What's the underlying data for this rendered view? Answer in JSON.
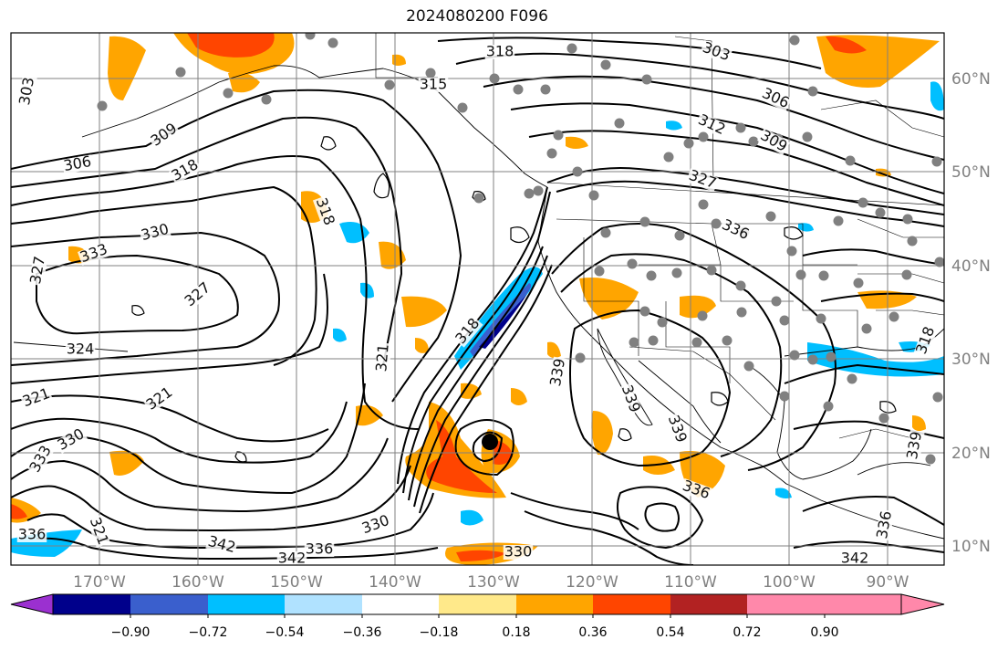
{
  "title": "2024080200 F096",
  "lon_labels": [
    "170°W",
    "160°W",
    "150°W",
    "140°W",
    "130°W",
    "120°W",
    "110°W",
    "100°W",
    "90°W"
  ],
  "lat_labels": [
    "60°N",
    "50°N",
    "40°N",
    "30°N",
    "20°N",
    "10°N"
  ],
  "contour_labels": [
    "303",
    "318",
    "315",
    "303",
    "306",
    "312",
    "309",
    "327",
    "336",
    "306",
    "309",
    "318",
    "330",
    "333",
    "327",
    "327",
    "324",
    "321",
    "321",
    "330",
    "333",
    "318",
    "321",
    "318",
    "339",
    "339",
    "339",
    "336",
    "330",
    "321",
    "336",
    "342",
    "342",
    "336",
    "330",
    "342",
    "336",
    "339",
    "318"
  ],
  "colorbar": {
    "ticks": [
      "−0.90",
      "−0.72",
      "−0.54",
      "−0.36",
      "−0.18",
      "0.18",
      "0.36",
      "0.54",
      "0.72",
      "0.90"
    ],
    "colors": [
      "#9b30d0",
      "#00008b",
      "#3a5fcd",
      "#00bfff",
      "#b0e2ff",
      "#ffffff",
      "#ffe98a",
      "#ffa500",
      "#ff4500",
      "#b22222",
      "#ff88aa"
    ]
  },
  "colors": {
    "contour": "#000000",
    "grid": "#808080",
    "orange": "#ffa500",
    "red": "#ff4500",
    "cyan": "#00bfff",
    "station": "#808080"
  }
}
